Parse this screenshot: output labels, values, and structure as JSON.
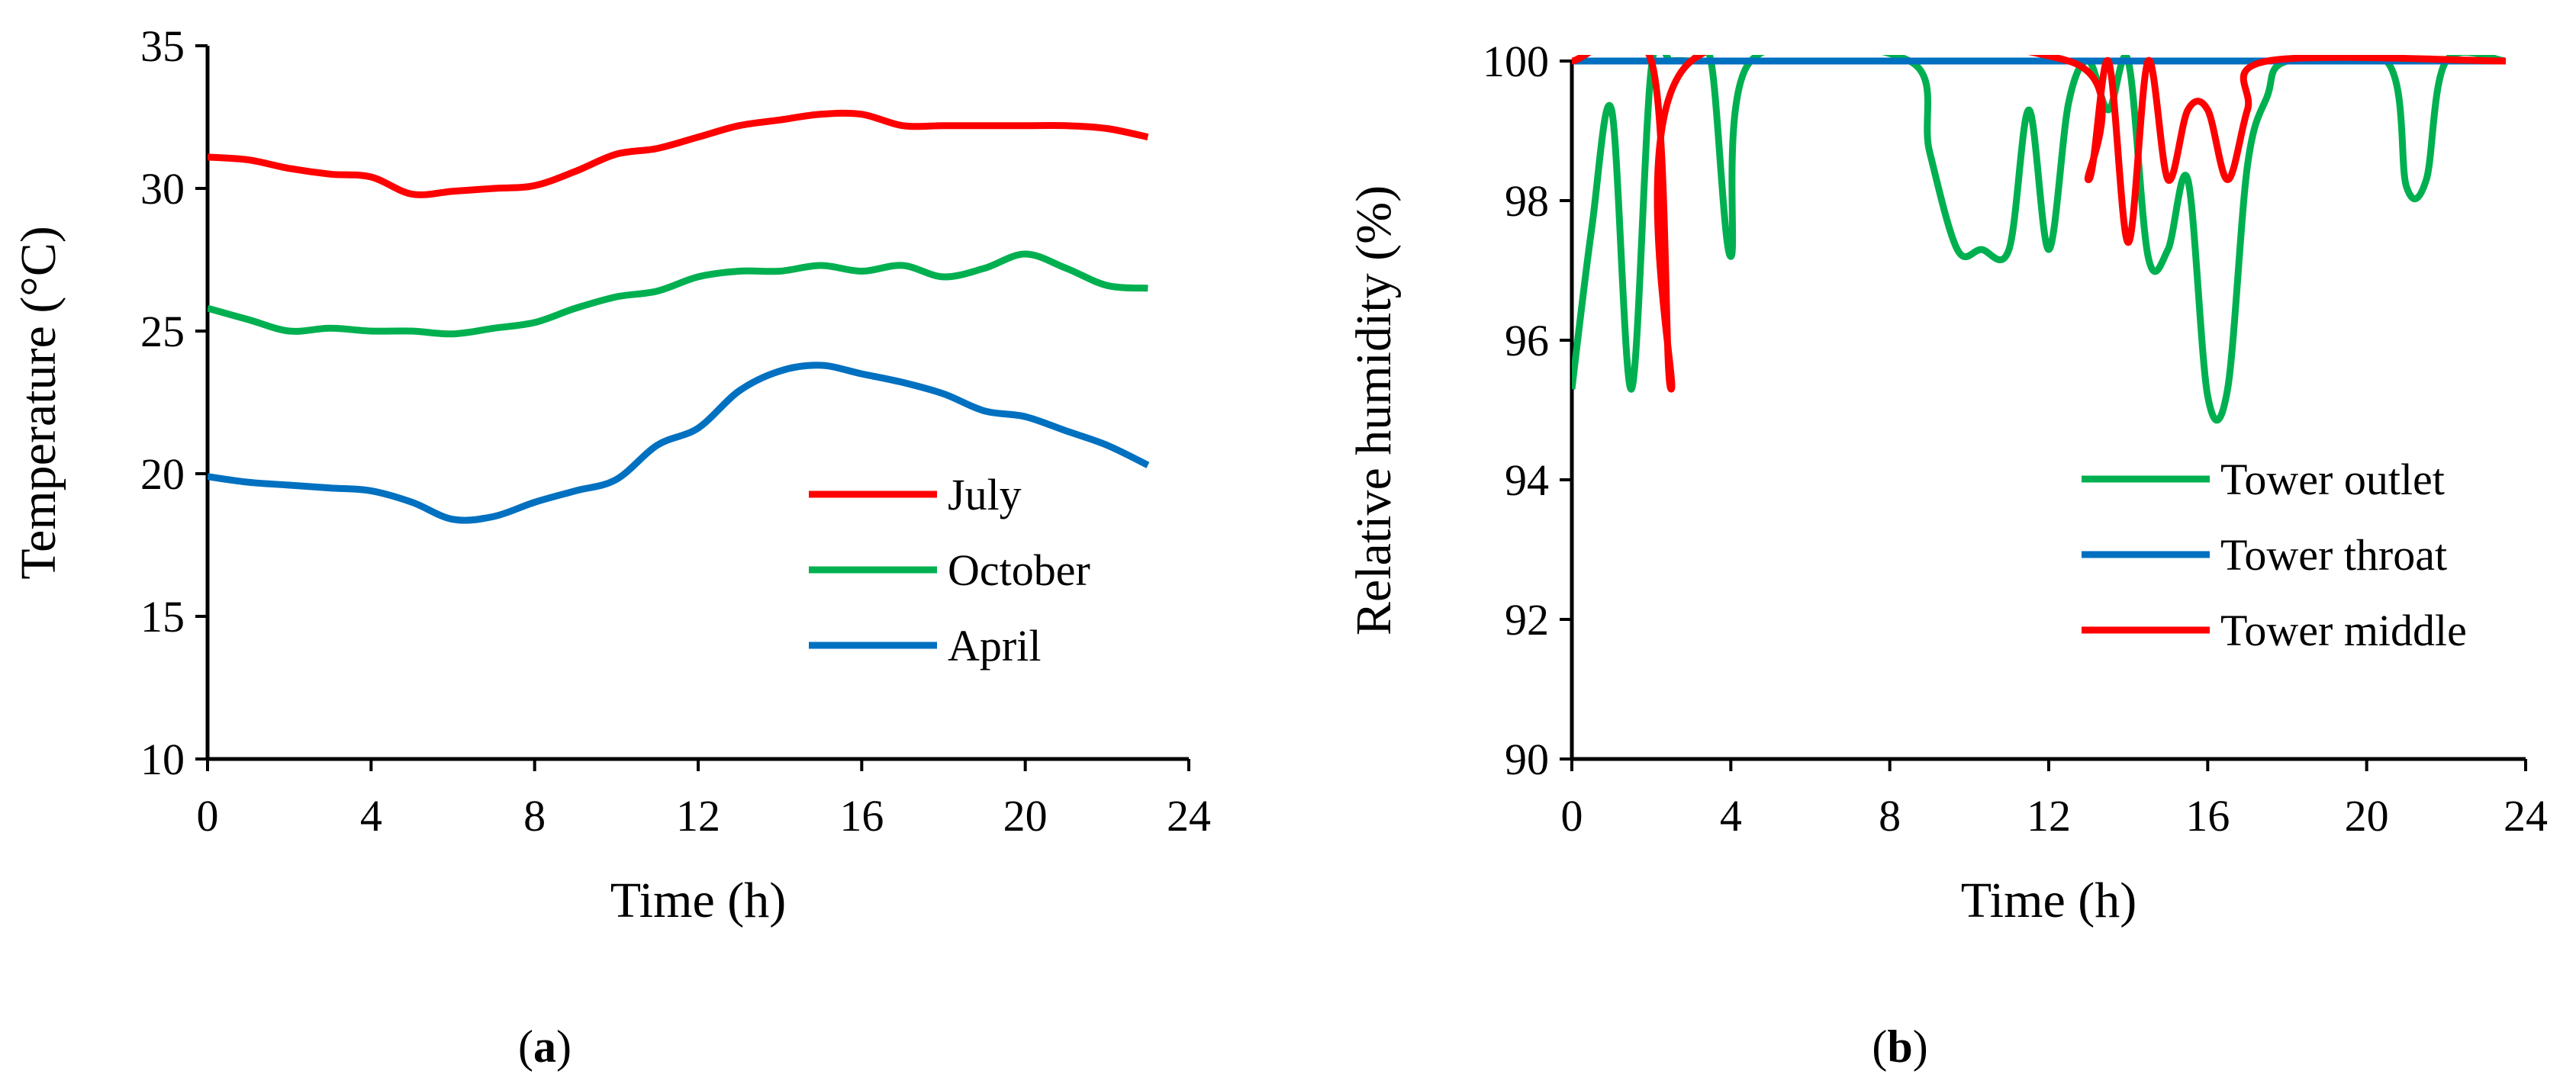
{
  "chart_data": [
    {
      "type": "line",
      "panel": "(a)",
      "panel_prefix": "(",
      "panel_letter": "a",
      "panel_suffix": ")",
      "xlabel": "Time (h)",
      "ylabel": "Temperature (°C)",
      "xlim": [
        0,
        24
      ],
      "ylim": [
        10,
        35
      ],
      "xticks": [
        0,
        4,
        8,
        12,
        16,
        20,
        24
      ],
      "yticks": [
        10,
        15,
        20,
        25,
        30,
        35
      ],
      "grid": false,
      "legend_position": "lower-right",
      "series": [
        {
          "name": "July",
          "color": "#ff0000",
          "x": [
            0,
            1,
            2,
            3,
            4,
            5,
            6,
            7,
            8,
            9,
            10,
            11,
            12,
            13,
            14,
            15,
            16,
            17,
            18,
            19,
            20,
            21,
            22,
            23
          ],
          "values": [
            31.1,
            31.0,
            30.7,
            30.5,
            30.4,
            29.8,
            29.9,
            30.0,
            30.1,
            30.6,
            31.2,
            31.4,
            31.8,
            32.2,
            32.4,
            32.6,
            32.6,
            32.2,
            32.2,
            32.2,
            32.2,
            32.2,
            32.1,
            31.8
          ]
        },
        {
          "name": "October",
          "color": "#00b050",
          "x": [
            0,
            1,
            2,
            3,
            4,
            5,
            6,
            7,
            8,
            9,
            10,
            11,
            12,
            13,
            14,
            15,
            16,
            17,
            18,
            19,
            20,
            21,
            22,
            23
          ],
          "values": [
            25.8,
            25.4,
            25.0,
            25.1,
            25.0,
            25.0,
            24.9,
            25.1,
            25.3,
            25.8,
            26.2,
            26.4,
            26.9,
            27.1,
            27.1,
            27.3,
            27.1,
            27.3,
            26.9,
            27.2,
            27.7,
            27.2,
            26.6,
            26.5
          ]
        },
        {
          "name": "April",
          "color": "#0070c0",
          "x": [
            0,
            1,
            2,
            3,
            4,
            5,
            6,
            7,
            8,
            9,
            10,
            11,
            12,
            13,
            14,
            15,
            16,
            17,
            18,
            19,
            20,
            21,
            22,
            23
          ],
          "values": [
            19.9,
            19.7,
            19.6,
            19.5,
            19.4,
            19.0,
            18.4,
            18.5,
            19.0,
            19.4,
            19.8,
            21.0,
            21.6,
            22.9,
            23.6,
            23.8,
            23.5,
            23.2,
            22.8,
            22.2,
            22.0,
            21.5,
            21.0,
            20.3
          ]
        }
      ]
    },
    {
      "type": "line",
      "panel": "(b)",
      "panel_prefix": "(",
      "panel_letter": "b",
      "panel_suffix": ")",
      "xlabel": "Time (h)",
      "ylabel": "Relative humidity (%)",
      "xlim": [
        0,
        24
      ],
      "ylim": [
        90,
        100
      ],
      "xticks": [
        0,
        4,
        8,
        12,
        16,
        20,
        24
      ],
      "yticks": [
        90,
        92,
        94,
        96,
        98,
        100
      ],
      "grid": false,
      "legend_position": "lower-right",
      "series": [
        {
          "name": "Tower outlet",
          "color": "#00b050",
          "x": [
            0,
            0.5,
            1,
            1.5,
            2,
            2.5,
            3,
            3.5,
            4,
            4.5,
            8.5,
            9,
            9.7,
            10.3,
            11,
            11.5,
            12,
            12.5,
            13,
            13.5,
            14,
            14.5,
            15,
            15.5,
            16,
            16.5,
            17,
            17.5,
            18,
            20.5,
            21,
            21.5,
            22,
            23.5
          ],
          "values": [
            95.3,
            97.6,
            99.3,
            95.3,
            99.9,
            100,
            100,
            100,
            97.2,
            100,
            100,
            98.7,
            97.3,
            97.3,
            97.3,
            99.3,
            97.3,
            99.4,
            100,
            99.3,
            100,
            97.2,
            97.3,
            98.3,
            95.2,
            95.3,
            98.5,
            99.5,
            100,
            100,
            98.2,
            98.3,
            100,
            100
          ]
        },
        {
          "name": "Tower throat",
          "color": "#0070c0",
          "x": [
            0,
            23.5
          ],
          "values": [
            100,
            100
          ]
        },
        {
          "name": "Tower middle",
          "color": "#ff0000",
          "x": [
            0,
            2,
            2.5,
            3,
            12.5,
            13,
            13.5,
            14,
            14.5,
            15,
            15.5,
            16,
            16.5,
            17,
            17.5,
            23.5
          ],
          "values": [
            100,
            100,
            95.3,
            100,
            100,
            98.3,
            100,
            97.4,
            100,
            98.3,
            99.3,
            99.3,
            98.3,
            99.3,
            100,
            100
          ]
        }
      ]
    }
  ]
}
